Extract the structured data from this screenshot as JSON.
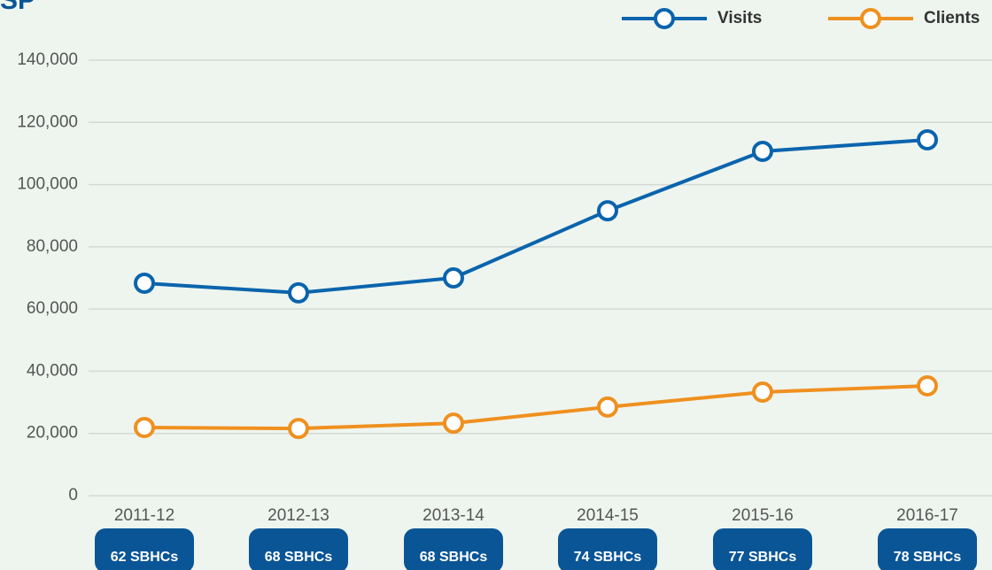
{
  "chart_data": {
    "type": "line",
    "title": "SP",
    "categories": [
      "2011-12",
      "2012-13",
      "2013-14",
      "2014-15",
      "2015-16",
      "2016-17"
    ],
    "badges": [
      "62 SBHCs",
      "68 SBHCs",
      "68 SBHCs",
      "74 SBHCs",
      "77 SBHCs",
      "78 SBHCs"
    ],
    "series": [
      {
        "name": "Visits",
        "color": "#0a64ad",
        "values": [
          68300,
          65200,
          70000,
          91600,
          110700,
          114400
        ]
      },
      {
        "name": "Clients",
        "color": "#ef901f",
        "values": [
          21900,
          21600,
          23300,
          28500,
          33300,
          35300
        ]
      }
    ],
    "ylim": [
      0,
      140000
    ],
    "yticks": [
      {
        "value": 0,
        "label": "0"
      },
      {
        "value": 20000,
        "label": "20,000"
      },
      {
        "value": 40000,
        "label": "40,000"
      },
      {
        "value": 60000,
        "label": "60,000"
      },
      {
        "value": 80000,
        "label": "80,000"
      },
      {
        "value": 100000,
        "label": "100,000"
      },
      {
        "value": 120000,
        "label": "120,000"
      },
      {
        "value": 140000,
        "label": "140,000"
      }
    ],
    "grid": true,
    "legend": "top-right"
  }
}
